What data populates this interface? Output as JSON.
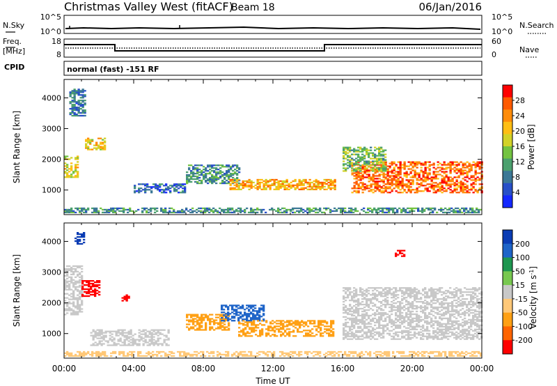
{
  "header": {
    "station": "Christmas Valley West (fitACF)",
    "beam": "Beam 18",
    "date": "06/Jan/2016"
  },
  "strips": {
    "nsky": {
      "label": "N.Sky",
      "ticks": [
        "10^5",
        "10^0"
      ]
    },
    "nsearch": {
      "label": "N.Search",
      "ticks": [
        "10^5",
        "10^0"
      ]
    },
    "freq": {
      "label_line1": "Freq.",
      "label_line2": "[MHz]",
      "ticks": [
        "18",
        "8"
      ]
    },
    "nave": {
      "label": "Nave",
      "ticks": [
        "60",
        "0"
      ]
    },
    "cpid": {
      "label": "CPID",
      "value": "normal (fast) -151 RF"
    }
  },
  "chart_data": [
    {
      "type": "heatmap",
      "title": "Power",
      "xlabel": "Time UT",
      "ylabel": "Slant Range [km]",
      "x_ticks": [
        "00:00",
        "04:00",
        "08:00",
        "12:00",
        "16:00",
        "20:00",
        "00:00"
      ],
      "y_ticks": [
        1000,
        2000,
        3000,
        4000
      ],
      "ylim": [
        200,
        4600
      ],
      "colorbar": {
        "label": "Power [dB]",
        "ticks": [
          4,
          8,
          12,
          16,
          20,
          24,
          28
        ],
        "range": [
          0,
          32
        ],
        "colors": [
          "#1428ff",
          "#2850c8",
          "#3c7896",
          "#4ba06e",
          "#73c341",
          "#d2d228",
          "#ffbe14",
          "#ff8c0a",
          "#ff5a00",
          "#ff0000"
        ]
      },
      "echo_regions": [
        {
          "t": [
            0.0,
            0.8
          ],
          "r": [
            1400,
            2100
          ],
          "power": 18
        },
        {
          "t": [
            0.3,
            1.2
          ],
          "r": [
            3400,
            4300
          ],
          "power": 8
        },
        {
          "t": [
            1.2,
            2.4
          ],
          "r": [
            2300,
            2700
          ],
          "power": 20
        },
        {
          "t": [
            4.0,
            7.0
          ],
          "r": [
            900,
            1200
          ],
          "power": 6
        },
        {
          "t": [
            7.0,
            10.0
          ],
          "r": [
            1200,
            1800
          ],
          "power": 10
        },
        {
          "t": [
            9.5,
            15.5
          ],
          "r": [
            1000,
            1350
          ],
          "power": 22
        },
        {
          "t": [
            16.5,
            24.0
          ],
          "r": [
            900,
            1900
          ],
          "power": 26
        },
        {
          "t": [
            16.0,
            18.5
          ],
          "r": [
            1600,
            2400
          ],
          "power": 14
        },
        {
          "t": [
            0.0,
            24.0
          ],
          "r": [
            250,
            400
          ],
          "power": 10
        }
      ]
    },
    {
      "type": "heatmap",
      "title": "Velocity",
      "xlabel": "Time UT",
      "ylabel": "Slant Range [km]",
      "x_ticks": [
        "00:00",
        "04:00",
        "08:00",
        "12:00",
        "16:00",
        "20:00",
        "00:00"
      ],
      "y_ticks": [
        1000,
        2000,
        3000,
        4000
      ],
      "ylim": [
        200,
        4600
      ],
      "colorbar": {
        "label_main": "Velocity [m s",
        "label_exp": "-1",
        "label_close": "]",
        "ticks": [
          200,
          100,
          50,
          15,
          -15,
          -50,
          -100,
          -200
        ],
        "colors": [
          "#0a3cb4",
          "#1e64c8",
          "#1e9650",
          "#78c850",
          "#c8c8c8",
          "#ffc878",
          "#ffa014",
          "#ff6400",
          "#ff0000"
        ]
      },
      "echo_regions": [
        {
          "t": [
            0.0,
            1.0
          ],
          "r": [
            1600,
            3200
          ],
          "velocity": 0
        },
        {
          "t": [
            0.6,
            1.2
          ],
          "r": [
            3900,
            4300
          ],
          "velocity": 250
        },
        {
          "t": [
            1.0,
            2.0
          ],
          "r": [
            2200,
            2700
          ],
          "velocity": -220
        },
        {
          "t": [
            3.3,
            3.7
          ],
          "r": [
            2050,
            2250
          ],
          "velocity": -220
        },
        {
          "t": [
            1.5,
            6.0
          ],
          "r": [
            600,
            1100
          ],
          "velocity": 0
        },
        {
          "t": [
            7.0,
            9.5
          ],
          "r": [
            1100,
            1600
          ],
          "velocity": -60
        },
        {
          "t": [
            9.0,
            11.5
          ],
          "r": [
            1400,
            1900
          ],
          "velocity": 120
        },
        {
          "t": [
            10.0,
            15.5
          ],
          "r": [
            900,
            1400
          ],
          "velocity": -70
        },
        {
          "t": [
            16.0,
            24.0
          ],
          "r": [
            800,
            2500
          ],
          "velocity": 0
        },
        {
          "t": [
            19.0,
            19.5
          ],
          "r": [
            3500,
            3700
          ],
          "velocity": -220
        },
        {
          "t": [
            0.0,
            24.0
          ],
          "r": [
            250,
            400
          ],
          "velocity": -30
        }
      ]
    }
  ],
  "colors": {
    "axis": "#000000",
    "background": "#ffffff"
  }
}
